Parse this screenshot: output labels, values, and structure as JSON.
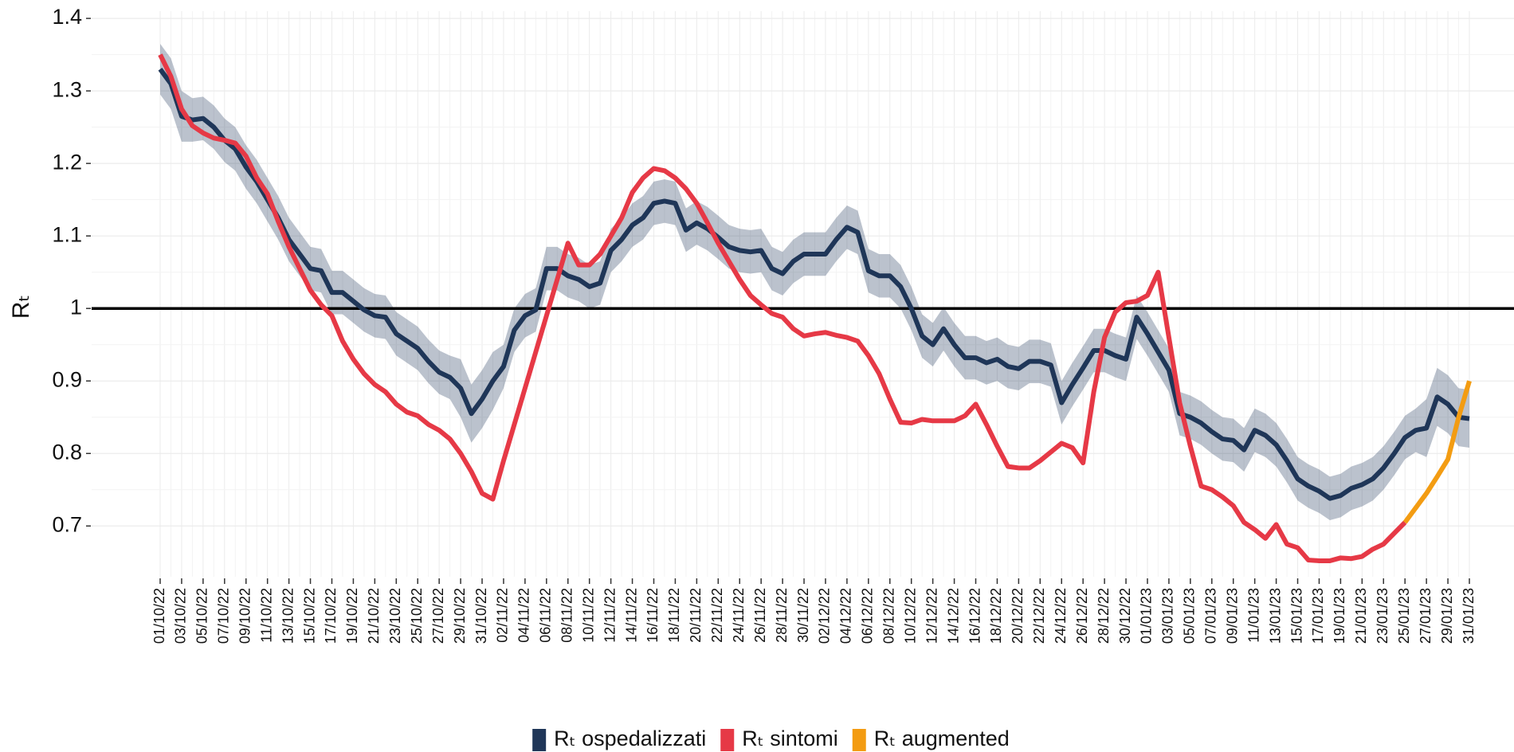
{
  "chart_data": {
    "type": "line",
    "y_label": "Rₜ",
    "categories": [
      "01/10/22",
      null,
      "03/10/22",
      null,
      "05/10/22",
      null,
      "07/10/22",
      null,
      "09/10/22",
      null,
      "11/10/22",
      null,
      "13/10/22",
      null,
      "15/10/22",
      null,
      "17/10/22",
      null,
      "19/10/22",
      null,
      "21/10/22",
      null,
      "23/10/22",
      null,
      "25/10/22",
      null,
      "27/10/22",
      null,
      "29/10/22",
      null,
      "31/10/22",
      null,
      "02/11/22",
      null,
      "04/11/22",
      null,
      "06/11/22",
      null,
      "08/11/22",
      null,
      "10/11/22",
      null,
      "12/11/22",
      null,
      "14/11/22",
      null,
      "16/11/22",
      null,
      "18/11/22",
      null,
      "20/11/22",
      null,
      "22/11/22",
      null,
      "24/11/22",
      null,
      "26/11/22",
      null,
      "28/11/22",
      null,
      "30/11/22",
      null,
      "02/12/22",
      null,
      "04/12/22",
      null,
      "06/12/22",
      null,
      "08/12/22",
      null,
      "10/12/22",
      null,
      "12/12/22",
      null,
      "14/12/22",
      null,
      "16/12/22",
      null,
      "18/12/22",
      null,
      "20/12/22",
      null,
      "22/12/22",
      null,
      "24/12/22",
      null,
      "26/12/22",
      null,
      "28/12/22",
      null,
      "30/12/22",
      null,
      "01/01/23",
      null,
      "03/01/23",
      null,
      "05/01/23",
      null,
      "07/01/23",
      null,
      "09/01/23",
      null,
      "11/01/23",
      null,
      "13/01/23",
      null,
      "15/01/23",
      null,
      "17/01/23",
      null,
      "19/01/23",
      null,
      "21/01/23",
      null,
      "23/01/23",
      null,
      "25/01/23",
      null,
      "27/01/23",
      null,
      "29/01/23",
      null,
      "31/01/23"
    ],
    "series": [
      {
        "name": "Rₜ ospedalizzati",
        "color": "#1f3658",
        "values": [
          1.33,
          1.31,
          1.265,
          1.26,
          1.262,
          1.25,
          1.232,
          1.22,
          1.195,
          1.175,
          1.15,
          1.125,
          1.095,
          1.075,
          1.055,
          1.052,
          1.022,
          1.022,
          1.01,
          0.998,
          0.99,
          0.988,
          0.965,
          0.955,
          0.945,
          0.927,
          0.912,
          0.905,
          0.89,
          0.855,
          0.875,
          0.9,
          0.92,
          0.97,
          0.99,
          0.998,
          1.055,
          1.055,
          1.045,
          1.04,
          1.03,
          1.035,
          1.08,
          1.095,
          1.115,
          1.125,
          1.145,
          1.148,
          1.145,
          1.108,
          1.118,
          1.11,
          1.098,
          1.085,
          1.08,
          1.078,
          1.08,
          1.055,
          1.048,
          1.065,
          1.075,
          1.075,
          1.075,
          1.095,
          1.112,
          1.105,
          1.052,
          1.045,
          1.045,
          1.03,
          1.0,
          0.962,
          0.95,
          0.972,
          0.95,
          0.932,
          0.932,
          0.925,
          0.93,
          0.92,
          0.917,
          0.927,
          0.927,
          0.922,
          0.87,
          0.895,
          0.918,
          0.942,
          0.942,
          0.935,
          0.93,
          0.988,
          0.965,
          0.94,
          0.915,
          0.855,
          0.85,
          0.842,
          0.83,
          0.82,
          0.818,
          0.805,
          0.832,
          0.825,
          0.812,
          0.79,
          0.765,
          0.755,
          0.748,
          0.738,
          0.742,
          0.752,
          0.757,
          0.765,
          0.78,
          0.8,
          0.822,
          0.832,
          0.835,
          0.878,
          0.868,
          0.85,
          0.848
        ],
        "upper": [
          1.365,
          1.345,
          1.3,
          1.29,
          1.292,
          1.28,
          1.262,
          1.25,
          1.225,
          1.205,
          1.18,
          1.155,
          1.125,
          1.105,
          1.085,
          1.082,
          1.052,
          1.052,
          1.04,
          1.028,
          1.02,
          1.018,
          0.995,
          0.985,
          0.975,
          0.957,
          0.942,
          0.935,
          0.93,
          0.895,
          0.915,
          0.94,
          0.95,
          1.0,
          1.02,
          1.028,
          1.085,
          1.085,
          1.075,
          1.07,
          1.06,
          1.065,
          1.11,
          1.125,
          1.145,
          1.155,
          1.175,
          1.178,
          1.175,
          1.138,
          1.148,
          1.14,
          1.128,
          1.115,
          1.11,
          1.108,
          1.11,
          1.085,
          1.078,
          1.095,
          1.105,
          1.105,
          1.105,
          1.125,
          1.142,
          1.135,
          1.082,
          1.075,
          1.075,
          1.06,
          1.03,
          0.992,
          0.98,
          1.002,
          0.98,
          0.962,
          0.962,
          0.955,
          0.96,
          0.95,
          0.947,
          0.957,
          0.957,
          0.952,
          0.9,
          0.925,
          0.948,
          0.972,
          0.972,
          0.965,
          0.96,
          1.018,
          0.995,
          0.97,
          0.945,
          0.885,
          0.88,
          0.872,
          0.86,
          0.85,
          0.848,
          0.835,
          0.862,
          0.855,
          0.842,
          0.82,
          0.795,
          0.785,
          0.778,
          0.768,
          0.772,
          0.782,
          0.787,
          0.795,
          0.81,
          0.83,
          0.852,
          0.862,
          0.875,
          0.918,
          0.908,
          0.89,
          0.888
        ],
        "lower": [
          1.295,
          1.275,
          1.23,
          1.23,
          1.232,
          1.22,
          1.202,
          1.19,
          1.165,
          1.145,
          1.12,
          1.095,
          1.065,
          1.045,
          1.025,
          1.022,
          0.992,
          0.992,
          0.98,
          0.968,
          0.96,
          0.958,
          0.935,
          0.925,
          0.915,
          0.897,
          0.882,
          0.875,
          0.85,
          0.815,
          0.835,
          0.86,
          0.89,
          0.94,
          0.96,
          0.968,
          1.025,
          1.025,
          1.015,
          1.01,
          1.0,
          1.005,
          1.05,
          1.065,
          1.085,
          1.095,
          1.115,
          1.118,
          1.115,
          1.078,
          1.088,
          1.08,
          1.068,
          1.055,
          1.05,
          1.048,
          1.05,
          1.025,
          1.018,
          1.035,
          1.045,
          1.045,
          1.045,
          1.065,
          1.082,
          1.075,
          1.022,
          1.015,
          1.015,
          1.0,
          0.97,
          0.932,
          0.92,
          0.942,
          0.92,
          0.902,
          0.902,
          0.895,
          0.9,
          0.89,
          0.887,
          0.897,
          0.897,
          0.892,
          0.84,
          0.865,
          0.888,
          0.912,
          0.912,
          0.905,
          0.9,
          0.958,
          0.935,
          0.91,
          0.885,
          0.825,
          0.82,
          0.812,
          0.8,
          0.79,
          0.788,
          0.775,
          0.802,
          0.795,
          0.782,
          0.76,
          0.735,
          0.725,
          0.718,
          0.708,
          0.712,
          0.722,
          0.727,
          0.735,
          0.75,
          0.77,
          0.792,
          0.802,
          0.795,
          0.838,
          0.828,
          0.81,
          0.808
        ]
      },
      {
        "name": "Rₜ sintomi",
        "color": "#e63946",
        "values": [
          1.35,
          1.32,
          1.275,
          1.252,
          1.242,
          1.235,
          1.232,
          1.228,
          1.21,
          1.18,
          1.158,
          1.12,
          1.085,
          1.055,
          1.025,
          1.005,
          0.99,
          0.955,
          0.93,
          0.91,
          0.895,
          0.885,
          0.868,
          0.857,
          0.852,
          0.84,
          0.832,
          0.82,
          0.8,
          0.775,
          0.745,
          0.737,
          0.79,
          0.84,
          0.89,
          0.94,
          0.99,
          1.04,
          1.09,
          1.06,
          1.06,
          1.075,
          1.1,
          1.125,
          1.16,
          1.18,
          1.193,
          1.19,
          1.18,
          1.165,
          1.145,
          1.118,
          1.09,
          1.065,
          1.04,
          1.018,
          1.005,
          0.993,
          0.988,
          0.972,
          0.962,
          0.965,
          0.967,
          0.963,
          0.96,
          0.955,
          0.935,
          0.91,
          0.875,
          0.843,
          0.842,
          0.847,
          0.845,
          0.845,
          0.845,
          0.852,
          0.868,
          0.84,
          0.81,
          0.782,
          0.78,
          0.78,
          0.79,
          0.802,
          0.814,
          0.808,
          0.787,
          0.885,
          0.96,
          0.995,
          1.008,
          1.01,
          1.018,
          1.05,
          0.96,
          0.87,
          0.81,
          0.755,
          0.75,
          0.74,
          0.728,
          0.705,
          0.695,
          0.683,
          0.702,
          0.675,
          0.67,
          0.653,
          0.652,
          0.652,
          0.656,
          0.655,
          0.658,
          0.668,
          0.675,
          0.69,
          0.705,
          null,
          null,
          null,
          null,
          null,
          null
        ]
      },
      {
        "name": "Rₜ augmented",
        "color": "#f39c12",
        "values": [
          null,
          null,
          null,
          null,
          null,
          null,
          null,
          null,
          null,
          null,
          null,
          null,
          null,
          null,
          null,
          null,
          null,
          null,
          null,
          null,
          null,
          null,
          null,
          null,
          null,
          null,
          null,
          null,
          null,
          null,
          null,
          null,
          null,
          null,
          null,
          null,
          null,
          null,
          null,
          null,
          null,
          null,
          null,
          null,
          null,
          null,
          null,
          null,
          null,
          null,
          null,
          null,
          null,
          null,
          null,
          null,
          null,
          null,
          null,
          null,
          null,
          null,
          null,
          null,
          null,
          null,
          null,
          null,
          null,
          null,
          null,
          null,
          null,
          null,
          null,
          null,
          null,
          null,
          null,
          null,
          null,
          null,
          null,
          null,
          null,
          null,
          null,
          null,
          null,
          null,
          null,
          null,
          null,
          null,
          null,
          null,
          null,
          null,
          null,
          null,
          null,
          null,
          null,
          null,
          null,
          null,
          null,
          null,
          null,
          null,
          null,
          null,
          null,
          null,
          null,
          null,
          0.705,
          0.725,
          0.745,
          0.768,
          0.792,
          0.85,
          0.9
        ]
      }
    ],
    "hline": 1.0,
    "ylim": [
      0.63,
      1.41
    ],
    "yticks": [
      0.7,
      0.8,
      0.9,
      1.0,
      1.1,
      1.2,
      1.3,
      1.4
    ],
    "grid": true,
    "legend": "bottom"
  }
}
